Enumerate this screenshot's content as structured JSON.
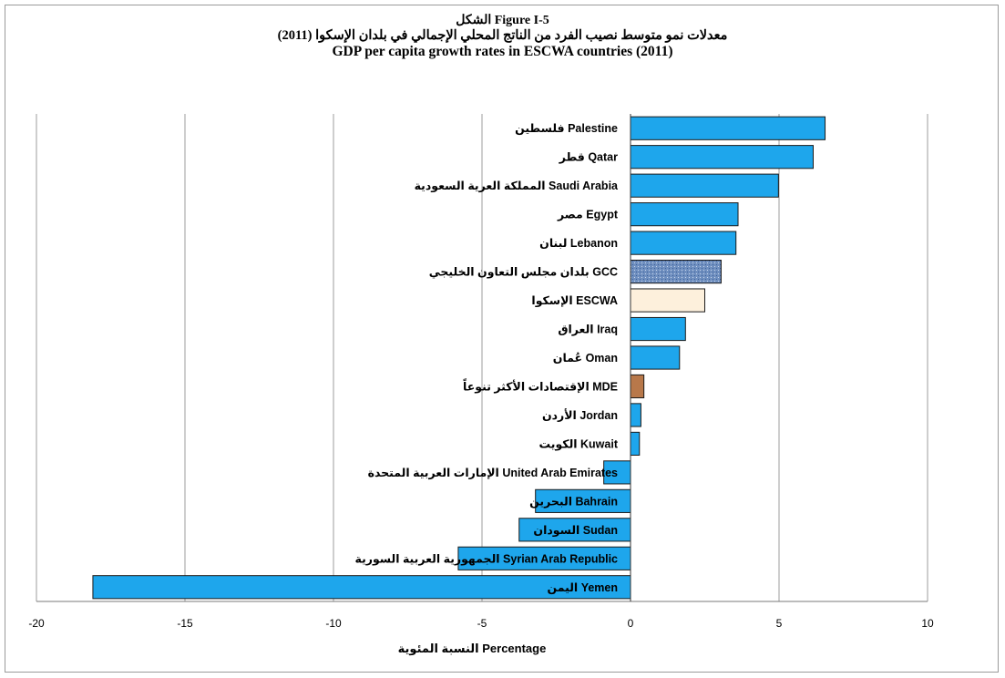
{
  "chart_data": {
    "type": "bar",
    "orientation": "horizontal",
    "title_lines": [
      "الشكل Figure I-5",
      "معدلات نمو متوسط نصيب الفرد من الناتج المحلي الإجمالي في بلدان الإسكوا (2011)",
      "GDP per capita growth rates in ESCWA countries (2011)"
    ],
    "xlabel": "النسبة المئوية Percentage",
    "xlim": [
      -20,
      10
    ],
    "x_ticks": [
      -20,
      -15,
      -10,
      -5,
      0,
      5,
      10
    ],
    "grid": "vertical",
    "legend": "none",
    "colors": {
      "default": "#1ea6ec",
      "GCC": "#6f8fbf",
      "ESCWA": "#fdf0dc",
      "MDE": "#b8784a",
      "border": "#1a1a1a",
      "grid": "#9e9e9e"
    },
    "categories": [
      {
        "label": "فلسطين  Palestine",
        "key": "default",
        "value": 6.55
      },
      {
        "label": "قطر  Qatar",
        "key": "default",
        "value": 6.15
      },
      {
        "label": "المملكة العرية السعودية Saudi Arabia",
        "key": "default",
        "value": 4.98
      },
      {
        "label": "مصر  Egypt",
        "key": "default",
        "value": 3.62
      },
      {
        "label": "لبنان  Lebanon",
        "key": "default",
        "value": 3.55
      },
      {
        "label": "بلدان مجلس التعاون الخليجي GCC",
        "key": "GCC",
        "value": 3.05
      },
      {
        "label": "الإسكوا  ESCWA",
        "key": "ESCWA",
        "value": 2.5
      },
      {
        "label": "العراق  Iraq",
        "key": "default",
        "value": 1.85
      },
      {
        "label": "عُمان  Oman",
        "key": "default",
        "value": 1.65
      },
      {
        "label": "الإقتصادات الأكثر تنوعاً  MDE",
        "key": "MDE",
        "value": 0.45
      },
      {
        "label": "الأردن Jordan",
        "key": "default",
        "value": 0.35
      },
      {
        "label": "الكويت  Kuwait",
        "key": "default",
        "value": 0.3
      },
      {
        "label": "الإمارات العربية المتحدة  United Arab Emirates",
        "key": "default",
        "value": -0.9
      },
      {
        "label": "البحرين  Bahrain",
        "key": "default",
        "value": -3.2
      },
      {
        "label": "السودان  Sudan",
        "key": "default",
        "value": -3.75
      },
      {
        "label": "الجمهورية العربية السورية Syrian Arab Republic",
        "key": "default",
        "value": -5.8
      },
      {
        "label": "اليمن  Yemen",
        "key": "default",
        "value": -18.1
      }
    ]
  }
}
